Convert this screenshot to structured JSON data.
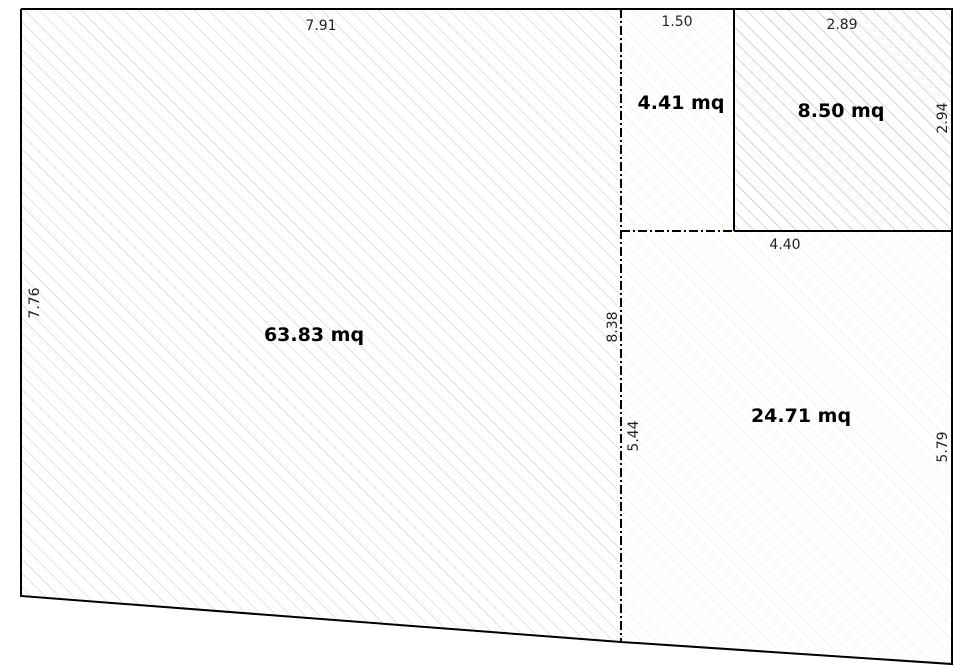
{
  "rooms": {
    "main": {
      "area_label": "63.83 mq",
      "width_label": "7.91",
      "height_label": "7.76",
      "hatch_color": "#c9cbd6"
    },
    "small_top": {
      "area_label": "4.41 mq",
      "width_label": "1.50",
      "hatch_color": "#ece9c2"
    },
    "green_top": {
      "area_label": "8.50 mq",
      "width_label": "2.89",
      "height_label": "2.94",
      "hatch_color": "#9fbf9a"
    },
    "bottom_right": {
      "area_label": "24.71 mq",
      "width_label": "4.40",
      "left_label": "5.44",
      "right_label": "5.79",
      "hatch_color": "#eceacb"
    }
  },
  "dimensions": {
    "divider_total_label": "8.38"
  }
}
